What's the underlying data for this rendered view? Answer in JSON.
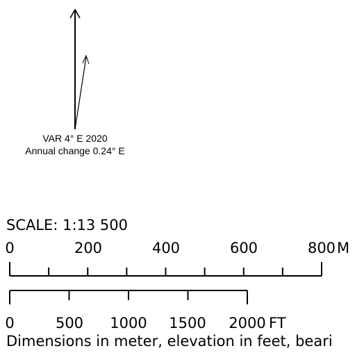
{
  "declination": {
    "var_text": "VAR 4° E 2020",
    "annual_change_text": "Annual change 0.24° E",
    "variation_deg": 4,
    "annual_change_deg": 0.24,
    "direction": "E",
    "year": 2020
  },
  "scale": {
    "title": "SCALE: 1:13 500",
    "ratio": 13500,
    "meter_bar": {
      "labels": [
        "0",
        "200",
        "400",
        "600",
        "800"
      ],
      "unit": "M",
      "max": 800,
      "major_step": 200,
      "minor_step": 100
    },
    "feet_bar": {
      "labels": [
        "0",
        "500",
        "1000",
        "1500",
        "2000"
      ],
      "unit": "FT",
      "max": 2000,
      "major_step": 500
    }
  },
  "footer": {
    "note": "Dimensions in meter, elevation in feet, beari"
  }
}
